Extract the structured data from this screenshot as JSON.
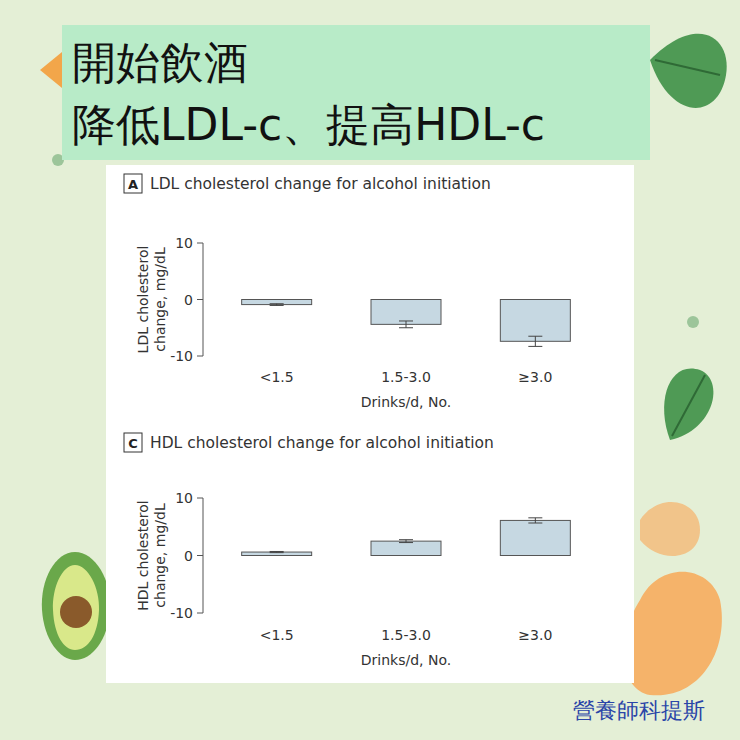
{
  "header": {
    "title_lines": [
      "開始飲酒",
      "降低LDL-c、提高HDL-c"
    ]
  },
  "footer": {
    "credit": "營養師科提斯"
  },
  "chart_data": [
    {
      "type": "bar",
      "panel_label": "A",
      "title": "LDL cholesterol change for alcohol initiation",
      "categories": [
        "<1.5",
        "1.5-3.0",
        "≥3.0"
      ],
      "values": [
        -0.9,
        -4.4,
        -7.4
      ],
      "errors": [
        0.15,
        0.6,
        0.9
      ],
      "color": "#c6d8e2",
      "xlabel": "Drinks/d, No.",
      "ylabel": "LDL cholesterol change, mg/dL",
      "ylim": [
        -10,
        10
      ],
      "yticks": [
        -10,
        0,
        10
      ],
      "grid": false
    },
    {
      "type": "bar",
      "panel_label": "C",
      "title": "HDL cholesterol change for alcohol initiation",
      "categories": [
        "<1.5",
        "1.5-3.0",
        "≥3.0"
      ],
      "values": [
        0.6,
        2.5,
        6.1
      ],
      "errors": [
        0.1,
        0.25,
        0.45
      ],
      "color": "#c6d8e2",
      "xlabel": "Drinks/d, No.",
      "ylabel": "HDL cholesterol change, mg/dL",
      "ylim": [
        -10,
        10
      ],
      "yticks": [
        -10,
        0,
        10
      ],
      "grid": false
    }
  ]
}
